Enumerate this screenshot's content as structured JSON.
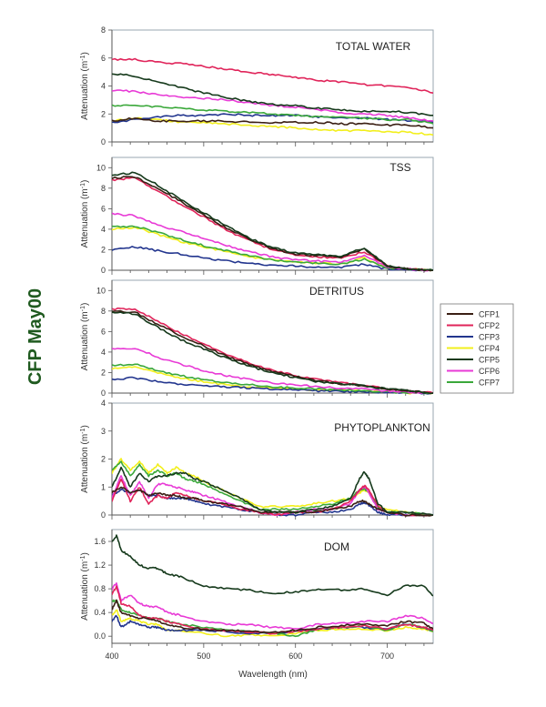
{
  "figure": {
    "side_title": "CFP May00",
    "xlabel": "Wavelength (nm)",
    "ylabel_main": "Attenuation (m",
    "ylabel_sup": "-1",
    "ylabel_close": ")"
  },
  "legend": {
    "placement": "right",
    "entries": [
      {
        "name": "CFP1",
        "color": "#3a1f14"
      },
      {
        "name": "CFP2",
        "color": "#e0245a"
      },
      {
        "name": "CFP3",
        "color": "#22358e"
      },
      {
        "name": "CFP4",
        "color": "#f2ef1c"
      },
      {
        "name": "CFP5",
        "color": "#163a1c"
      },
      {
        "name": "CFP6",
        "color": "#e83ad6"
      },
      {
        "name": "CFP7",
        "color": "#3aa83a"
      }
    ]
  },
  "chart_data": [
    {
      "type": "line",
      "title": "TOTAL WATER",
      "xlabel": "",
      "ylabel": "Attenuation (m-1)",
      "xlim": [
        400,
        750
      ],
      "ylim": [
        0,
        8
      ],
      "yticks": [
        "0",
        "2",
        "4",
        "6",
        "8"
      ],
      "xticks": [
        400,
        500,
        600,
        700
      ],
      "x": [
        400,
        425,
        450,
        475,
        500,
        525,
        550,
        575,
        600,
        625,
        650,
        675,
        700,
        725,
        750
      ],
      "series": [
        {
          "name": "CFP1",
          "values": [
            1.5,
            1.7,
            1.5,
            1.5,
            1.5,
            1.5,
            1.4,
            1.4,
            1.4,
            1.4,
            1.3,
            1.3,
            1.2,
            1.2,
            1.0
          ]
        },
        {
          "name": "CFP2",
          "values": [
            5.9,
            5.9,
            5.7,
            5.6,
            5.4,
            5.2,
            5.0,
            4.8,
            4.6,
            4.4,
            4.3,
            4.1,
            4.0,
            3.9,
            3.5
          ]
        },
        {
          "name": "CFP3",
          "values": [
            1.4,
            1.6,
            1.8,
            1.9,
            1.9,
            2.0,
            1.9,
            1.9,
            1.9,
            1.8,
            1.7,
            1.7,
            1.6,
            1.5,
            1.4
          ]
        },
        {
          "name": "CFP4",
          "values": [
            1.5,
            1.7,
            1.6,
            1.4,
            1.4,
            1.3,
            1.2,
            1.1,
            1.0,
            0.9,
            0.8,
            0.8,
            0.7,
            0.7,
            0.5
          ]
        },
        {
          "name": "CFP5",
          "values": [
            4.9,
            4.7,
            4.3,
            3.9,
            3.5,
            3.2,
            2.9,
            2.7,
            2.6,
            2.4,
            2.3,
            2.2,
            2.2,
            2.1,
            1.9
          ]
        },
        {
          "name": "CFP6",
          "values": [
            3.7,
            3.6,
            3.4,
            3.2,
            3.1,
            3.0,
            2.8,
            2.6,
            2.5,
            2.3,
            2.1,
            2.0,
            1.9,
            1.7,
            1.5
          ]
        },
        {
          "name": "CFP7",
          "values": [
            2.6,
            2.6,
            2.5,
            2.4,
            2.3,
            2.2,
            2.1,
            2.0,
            1.9,
            1.8,
            1.8,
            1.7,
            1.6,
            1.6,
            1.3
          ]
        }
      ]
    },
    {
      "type": "line",
      "title": "TSS",
      "xlabel": "",
      "ylabel": "Attenuation (m-1)",
      "xlim": [
        400,
        750
      ],
      "ylim": [
        0,
        11
      ],
      "yticks": [
        "0",
        "2",
        "4",
        "6",
        "8",
        "10"
      ],
      "xticks": [
        400,
        500,
        600,
        700
      ],
      "x": [
        400,
        425,
        450,
        475,
        500,
        525,
        550,
        575,
        600,
        625,
        650,
        675,
        700,
        725,
        750
      ],
      "series": [
        {
          "name": "CFP1",
          "values": [
            9.0,
            9.1,
            8.0,
            6.7,
            5.4,
            4.1,
            3.0,
            2.1,
            1.6,
            1.4,
            1.3,
            2.1,
            0.4,
            0.1,
            0.0
          ]
        },
        {
          "name": "CFP2",
          "values": [
            8.8,
            9.0,
            7.7,
            6.4,
            5.2,
            3.9,
            2.9,
            2.0,
            1.5,
            1.3,
            1.2,
            1.8,
            0.4,
            0.1,
            0.0
          ]
        },
        {
          "name": "CFP3",
          "values": [
            2.0,
            2.3,
            1.9,
            1.6,
            1.2,
            0.9,
            0.7,
            0.5,
            0.4,
            0.3,
            0.3,
            0.6,
            0.1,
            0.0,
            0.0
          ]
        },
        {
          "name": "CFP4",
          "values": [
            4.0,
            4.2,
            3.5,
            2.8,
            2.3,
            1.8,
            1.3,
            1.0,
            0.8,
            0.7,
            0.6,
            1.2,
            0.2,
            0.1,
            0.0
          ]
        },
        {
          "name": "CFP5",
          "values": [
            9.3,
            9.5,
            8.3,
            6.9,
            5.6,
            4.3,
            3.1,
            2.2,
            1.7,
            1.5,
            1.4,
            2.2,
            0.4,
            0.1,
            0.0
          ]
        },
        {
          "name": "CFP6",
          "values": [
            5.5,
            5.3,
            4.4,
            3.8,
            3.1,
            2.4,
            1.8,
            1.3,
            1.0,
            0.9,
            0.8,
            1.5,
            0.3,
            0.1,
            0.0
          ]
        },
        {
          "name": "CFP7",
          "values": [
            4.2,
            4.3,
            3.7,
            3.0,
            2.4,
            1.9,
            1.4,
            1.0,
            0.8,
            0.7,
            0.6,
            1.1,
            0.2,
            0.1,
            0.0
          ]
        }
      ]
    },
    {
      "type": "line",
      "title": "DETRITUS",
      "xlabel": "",
      "ylabel": "Attenuation (m-1)",
      "xlim": [
        400,
        750
      ],
      "ylim": [
        0,
        11
      ],
      "yticks": [
        "0",
        "2",
        "4",
        "6",
        "8",
        "10"
      ],
      "xticks": [
        400,
        500,
        600,
        700
      ],
      "x": [
        400,
        425,
        450,
        475,
        500,
        525,
        550,
        575,
        600,
        625,
        650,
        675,
        700,
        725,
        750
      ],
      "series": [
        {
          "name": "CFP1",
          "values": [
            8.0,
            7.9,
            6.7,
            5.6,
            4.6,
            3.6,
            2.8,
            2.1,
            1.6,
            1.2,
            0.9,
            0.7,
            0.4,
            0.2,
            0.0
          ]
        },
        {
          "name": "CFP2",
          "values": [
            8.2,
            8.2,
            7.0,
            5.8,
            4.8,
            3.8,
            2.9,
            2.2,
            1.7,
            1.3,
            1.0,
            0.8,
            0.4,
            0.2,
            0.0
          ]
        },
        {
          "name": "CFP3",
          "values": [
            1.3,
            1.5,
            1.1,
            0.9,
            0.7,
            0.6,
            0.5,
            0.4,
            0.3,
            0.2,
            0.2,
            0.1,
            0.1,
            0.0,
            0.0
          ]
        },
        {
          "name": "CFP4",
          "values": [
            2.4,
            2.6,
            2.0,
            1.5,
            1.1,
            0.8,
            0.6,
            0.5,
            0.4,
            0.3,
            0.3,
            0.2,
            0.1,
            0.0,
            0.0
          ]
        },
        {
          "name": "CFP5",
          "values": [
            7.9,
            7.7,
            6.4,
            5.2,
            4.3,
            3.4,
            2.6,
            2.0,
            1.5,
            1.1,
            0.9,
            0.7,
            0.4,
            0.2,
            0.0
          ]
        },
        {
          "name": "CFP6",
          "values": [
            4.3,
            4.4,
            3.5,
            2.8,
            2.2,
            1.7,
            1.3,
            1.0,
            0.8,
            0.6,
            0.5,
            0.4,
            0.2,
            0.1,
            0.0
          ]
        },
        {
          "name": "CFP7",
          "values": [
            2.7,
            2.8,
            2.2,
            1.7,
            1.3,
            1.0,
            0.8,
            0.6,
            0.5,
            0.4,
            0.3,
            0.2,
            0.1,
            0.0,
            0.0
          ]
        }
      ]
    },
    {
      "type": "line",
      "title": "PHYTOPLANKTON",
      "xlabel": "",
      "ylabel": "Attenuation (m-1)",
      "xlim": [
        400,
        750
      ],
      "ylim": [
        0,
        4
      ],
      "yticks": [
        "0",
        "1",
        "2",
        "3",
        "4"
      ],
      "xticks": [
        400,
        500,
        600,
        700
      ],
      "x": [
        400,
        410,
        420,
        430,
        440,
        450,
        460,
        470,
        480,
        490,
        500,
        520,
        540,
        560,
        580,
        600,
        620,
        640,
        660,
        670,
        675,
        680,
        690,
        700,
        720,
        750
      ],
      "series": [
        {
          "name": "CFP1",
          "values": [
            0.8,
            1.0,
            0.8,
            0.9,
            0.7,
            0.8,
            0.7,
            0.7,
            0.6,
            0.6,
            0.5,
            0.4,
            0.3,
            0.1,
            0.1,
            0.1,
            0.1,
            0.2,
            0.3,
            0.5,
            0.5,
            0.4,
            0.2,
            0.1,
            0.0,
            0.0
          ]
        },
        {
          "name": "CFP2",
          "values": [
            0.5,
            1.3,
            0.5,
            1.0,
            0.4,
            0.7,
            0.6,
            0.8,
            0.7,
            0.6,
            0.5,
            0.4,
            0.2,
            0.1,
            0.0,
            0.1,
            0.1,
            0.2,
            0.5,
            0.9,
            1.05,
            0.9,
            0.3,
            0.1,
            0.0,
            0.0
          ]
        },
        {
          "name": "CFP3",
          "values": [
            0.7,
            0.9,
            0.8,
            0.9,
            0.7,
            0.7,
            0.6,
            0.6,
            0.6,
            0.5,
            0.4,
            0.3,
            0.2,
            0.1,
            0.0,
            0.0,
            0.1,
            0.1,
            0.2,
            0.4,
            0.45,
            0.35,
            0.1,
            0.0,
            0.0,
            0.0
          ]
        },
        {
          "name": "CFP4",
          "values": [
            1.5,
            2.0,
            1.6,
            1.9,
            1.5,
            1.8,
            1.5,
            1.7,
            1.5,
            1.4,
            1.2,
            0.9,
            0.6,
            0.3,
            0.3,
            0.3,
            0.4,
            0.5,
            0.6,
            0.8,
            0.9,
            0.8,
            0.3,
            0.2,
            0.1,
            0.0
          ]
        },
        {
          "name": "CFP5",
          "values": [
            1.0,
            1.7,
            1.0,
            1.5,
            1.2,
            1.4,
            1.4,
            1.5,
            1.5,
            1.3,
            1.2,
            0.9,
            0.6,
            0.2,
            0.1,
            0.1,
            0.2,
            0.3,
            0.6,
            1.3,
            1.55,
            1.3,
            0.4,
            0.1,
            0.1,
            0.0
          ]
        },
        {
          "name": "CFP6",
          "values": [
            0.6,
            1.4,
            0.7,
            1.2,
            0.6,
            1.1,
            1.1,
            1.0,
            0.9,
            0.8,
            0.7,
            0.5,
            0.3,
            0.1,
            0.0,
            0.1,
            0.2,
            0.2,
            0.4,
            0.9,
            1.0,
            0.8,
            0.2,
            0.1,
            0.0,
            0.0
          ]
        },
        {
          "name": "CFP7",
          "values": [
            1.6,
            1.9,
            1.4,
            1.8,
            1.4,
            1.6,
            1.4,
            1.5,
            1.3,
            1.2,
            1.1,
            0.8,
            0.5,
            0.2,
            0.2,
            0.2,
            0.3,
            0.4,
            0.6,
            0.9,
            0.95,
            0.8,
            0.3,
            0.1,
            0.1,
            0.0
          ]
        }
      ]
    },
    {
      "type": "line",
      "title": "DOM",
      "xlabel": "Wavelength (nm)",
      "ylabel": "Attenuation (m-1)",
      "xlim": [
        400,
        750
      ],
      "ylim": [
        -0.12,
        1.8
      ],
      "yticks": [
        "0.0",
        "0.4",
        "0.8",
        "1.2",
        "1.6"
      ],
      "xticks": [
        400,
        500,
        600,
        700
      ],
      "x": [
        400,
        405,
        410,
        420,
        430,
        440,
        450,
        460,
        475,
        500,
        525,
        550,
        575,
        600,
        625,
        650,
        675,
        700,
        720,
        740,
        750
      ],
      "series": [
        {
          "name": "CFP1",
          "values": [
            0.45,
            0.6,
            0.4,
            0.35,
            0.3,
            0.3,
            0.25,
            0.2,
            0.15,
            0.12,
            0.1,
            0.08,
            0.06,
            0.1,
            0.15,
            0.18,
            0.2,
            0.18,
            0.25,
            0.22,
            0.12
          ]
        },
        {
          "name": "CFP2",
          "values": [
            0.7,
            0.85,
            0.55,
            0.5,
            0.35,
            0.3,
            0.3,
            0.25,
            0.2,
            0.12,
            0.1,
            0.07,
            0.05,
            0.08,
            0.12,
            0.15,
            0.17,
            0.12,
            0.2,
            0.15,
            0.1
          ]
        },
        {
          "name": "CFP3",
          "values": [
            0.25,
            0.35,
            0.15,
            0.25,
            0.2,
            0.15,
            0.15,
            0.1,
            0.1,
            0.1,
            0.08,
            0.05,
            0.05,
            0.08,
            0.12,
            0.15,
            0.15,
            0.12,
            0.2,
            0.15,
            0.1
          ]
        },
        {
          "name": "CFP4",
          "values": [
            0.35,
            0.45,
            0.25,
            0.3,
            0.25,
            0.2,
            0.2,
            0.1,
            0.1,
            0.05,
            0.0,
            0.02,
            0.0,
            0.05,
            0.1,
            0.12,
            0.12,
            0.1,
            0.15,
            0.12,
            0.08
          ]
        },
        {
          "name": "CFP5",
          "values": [
            1.6,
            1.7,
            1.45,
            1.35,
            1.2,
            1.15,
            1.15,
            1.05,
            1.0,
            0.85,
            0.8,
            0.78,
            0.72,
            0.75,
            0.78,
            0.78,
            0.8,
            0.7,
            0.85,
            0.85,
            0.68
          ]
        },
        {
          "name": "CFP6",
          "values": [
            0.8,
            0.9,
            0.6,
            0.7,
            0.55,
            0.5,
            0.5,
            0.4,
            0.35,
            0.25,
            0.2,
            0.2,
            0.15,
            0.12,
            0.2,
            0.22,
            0.25,
            0.25,
            0.35,
            0.3,
            0.22
          ]
        },
        {
          "name": "CFP7",
          "values": [
            0.6,
            0.6,
            0.45,
            0.4,
            0.35,
            0.3,
            0.3,
            0.25,
            0.2,
            0.15,
            0.1,
            0.08,
            0.05,
            0.0,
            0.12,
            0.15,
            0.18,
            0.1,
            0.2,
            0.15,
            0.08
          ]
        }
      ]
    }
  ]
}
